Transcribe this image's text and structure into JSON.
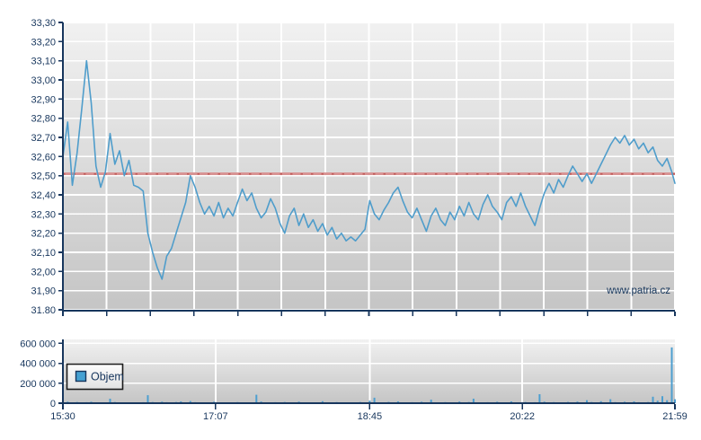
{
  "watermark": "www.patria.cz",
  "colors": {
    "axis": "#17365d",
    "label": "#17365d",
    "grid": "#ffffff",
    "plot_bg_top": "#f1f1f1",
    "plot_bg_bottom": "#c5c5c5",
    "price_line": "#4f9dcb",
    "reference_line": "#d89494",
    "reference_line_dash": "#bf5b58",
    "volume_bar": "#4d9fd0",
    "legend_swatch": "#45a1d2",
    "legend_border": "#1b1b1b"
  },
  "chart_data": [
    {
      "type": "line",
      "title": "",
      "xlabel": "",
      "ylabel": "",
      "grid": true,
      "y_axis": {
        "range": [
          31.8,
          33.3
        ],
        "grid_step": 0.1,
        "ticks": [
          "33,30",
          "33,20",
          "33,10",
          "33,00",
          "32,90",
          "32,80",
          "32,70",
          "32,60",
          "32,50",
          "32,40",
          "32,30",
          "32,20",
          "32,10",
          "32,00",
          "31,90",
          "31.80"
        ],
        "values": [
          33.3,
          33.2,
          33.1,
          33.0,
          32.9,
          32.8,
          32.7,
          32.6,
          32.5,
          32.4,
          32.3,
          32.2,
          32.1,
          32.0,
          31.9,
          31.8
        ]
      },
      "x_axis": {
        "range_minutes": [
          0,
          389
        ],
        "start_time": "15:30",
        "end_time": "21:59",
        "minor_divisions": 14,
        "ticks": [
          "15:30",
          "17:07",
          "18:45",
          "20:22",
          "21:59"
        ],
        "tick_minutes": [
          0,
          97,
          195,
          292,
          389
        ],
        "labels_visible": false
      },
      "reference_line": {
        "value": 32.51
      },
      "series": [
        {
          "name": "price",
          "x": [
            0,
            3,
            6,
            9,
            12,
            15,
            18,
            21,
            24,
            27,
            30,
            33,
            36,
            39,
            42,
            45,
            48,
            51,
            54,
            57,
            60,
            63,
            66,
            69,
            72,
            75,
            78,
            81,
            84,
            87,
            90,
            93,
            96,
            99,
            102,
            105,
            108,
            111,
            114,
            117,
            120,
            123,
            126,
            129,
            132,
            135,
            138,
            141,
            144,
            147,
            150,
            153,
            156,
            159,
            162,
            165,
            168,
            171,
            174,
            177,
            180,
            183,
            186,
            189,
            192,
            195,
            198,
            201,
            204,
            207,
            210,
            213,
            216,
            219,
            222,
            225,
            228,
            231,
            234,
            237,
            240,
            243,
            246,
            249,
            252,
            255,
            258,
            261,
            264,
            267,
            270,
            273,
            276,
            279,
            282,
            285,
            288,
            291,
            294,
            297,
            300,
            303,
            306,
            309,
            312,
            315,
            318,
            321,
            324,
            327,
            330,
            333,
            336,
            339,
            342,
            345,
            348,
            351,
            354,
            357,
            360,
            363,
            366,
            369,
            372,
            375,
            378,
            381,
            384,
            387,
            389
          ],
          "values": [
            32.6,
            32.78,
            32.45,
            32.62,
            32.85,
            33.1,
            32.88,
            32.55,
            32.44,
            32.52,
            32.72,
            32.56,
            32.63,
            32.5,
            32.58,
            32.45,
            32.44,
            32.42,
            32.2,
            32.1,
            32.02,
            31.96,
            32.08,
            32.12,
            32.2,
            32.28,
            32.36,
            32.5,
            32.44,
            32.36,
            32.3,
            32.34,
            32.29,
            32.36,
            32.28,
            32.33,
            32.29,
            32.36,
            32.43,
            32.37,
            32.41,
            32.33,
            32.28,
            32.31,
            32.38,
            32.33,
            32.25,
            32.2,
            32.29,
            32.33,
            32.24,
            32.3,
            32.23,
            32.27,
            32.21,
            32.25,
            32.19,
            32.23,
            32.17,
            32.2,
            32.16,
            32.18,
            32.16,
            32.19,
            32.22,
            32.37,
            32.3,
            32.27,
            32.32,
            32.36,
            32.41,
            32.44,
            32.37,
            32.31,
            32.28,
            32.33,
            32.27,
            32.21,
            32.29,
            32.33,
            32.27,
            32.24,
            32.31,
            32.27,
            32.34,
            32.29,
            32.36,
            32.3,
            32.27,
            32.35,
            32.4,
            32.34,
            32.31,
            32.27,
            32.36,
            32.39,
            32.34,
            32.41,
            32.34,
            32.29,
            32.24,
            32.33,
            32.41,
            32.46,
            32.41,
            32.48,
            32.44,
            32.5,
            32.55,
            32.51,
            32.47,
            32.51,
            32.46,
            32.51,
            32.56,
            32.61,
            32.66,
            32.7,
            32.67,
            32.71,
            32.66,
            32.69,
            32.64,
            32.67,
            32.62,
            32.65,
            32.58,
            32.55,
            32.59,
            32.52,
            32.46
          ]
        }
      ]
    },
    {
      "type": "bar",
      "title": "",
      "legend": [
        "Objem"
      ],
      "legend_position": "top-left-inside",
      "grid": true,
      "y_axis": {
        "range": [
          0,
          640000
        ],
        "ticks": [
          "600 000",
          "400 000",
          "200 000",
          "0"
        ],
        "values": [
          600000,
          400000,
          200000,
          0
        ],
        "gridline_values": [
          600000,
          400000,
          200000
        ]
      },
      "x_axis": {
        "range_minutes": [
          0,
          389
        ],
        "ticks": [
          "15:30",
          "17:07",
          "18:45",
          "20:22",
          "21:59"
        ],
        "tick_minutes": [
          0,
          97,
          195,
          292,
          389
        ],
        "labels_visible": true
      },
      "series": [
        {
          "name": "Objem",
          "x": [
            0,
            3,
            6,
            9,
            12,
            15,
            18,
            21,
            24,
            27,
            30,
            33,
            36,
            39,
            42,
            45,
            48,
            51,
            54,
            57,
            60,
            63,
            66,
            69,
            72,
            75,
            78,
            81,
            84,
            87,
            90,
            93,
            96,
            99,
            102,
            105,
            108,
            111,
            114,
            117,
            120,
            123,
            126,
            129,
            132,
            135,
            138,
            141,
            144,
            147,
            150,
            153,
            156,
            159,
            162,
            165,
            168,
            171,
            174,
            177,
            180,
            183,
            186,
            189,
            192,
            195,
            198,
            201,
            204,
            207,
            210,
            213,
            216,
            219,
            222,
            225,
            228,
            231,
            234,
            237,
            240,
            243,
            246,
            249,
            252,
            255,
            258,
            261,
            264,
            267,
            270,
            273,
            276,
            279,
            282,
            285,
            288,
            291,
            294,
            297,
            300,
            303,
            306,
            309,
            312,
            315,
            318,
            321,
            324,
            327,
            330,
            333,
            336,
            339,
            342,
            345,
            348,
            351,
            354,
            357,
            360,
            363,
            366,
            369,
            372,
            375,
            378,
            381,
            384,
            387,
            389
          ],
          "values": [
            22000,
            15000,
            9000,
            12000,
            7000,
            10000,
            14000,
            8000,
            5000,
            9000,
            45000,
            12000,
            6000,
            4000,
            8000,
            5000,
            3000,
            10000,
            80000,
            12000,
            8000,
            15000,
            10000,
            6000,
            12000,
            18000,
            8000,
            22000,
            10000,
            6000,
            4000,
            8000,
            14000,
            9000,
            5000,
            3000,
            7000,
            11000,
            6000,
            4000,
            9000,
            85000,
            16000,
            7000,
            5000,
            10000,
            6000,
            12000,
            4000,
            8000,
            15000,
            6000,
            3000,
            9000,
            5000,
            20000,
            7000,
            4000,
            11000,
            6000,
            3000,
            8000,
            5000,
            12000,
            7000,
            25000,
            55000,
            9000,
            6000,
            13000,
            8000,
            18000,
            6000,
            4000,
            10000,
            7000,
            14000,
            5000,
            35000,
            8000,
            6000,
            11000,
            4000,
            9000,
            16000,
            6000,
            12000,
            45000,
            8000,
            5000,
            10000,
            7000,
            14000,
            6000,
            9000,
            18000,
            5000,
            8000,
            12000,
            6000,
            10000,
            90000,
            15000,
            7000,
            11000,
            5000,
            9000,
            13000,
            6000,
            16000,
            8000,
            30000,
            12000,
            7000,
            20000,
            9000,
            40000,
            11000,
            6000,
            14000,
            8000,
            18000,
            10000,
            6000,
            12000,
            65000,
            25000,
            70000,
            30000,
            560000,
            40000
          ]
        }
      ]
    }
  ]
}
